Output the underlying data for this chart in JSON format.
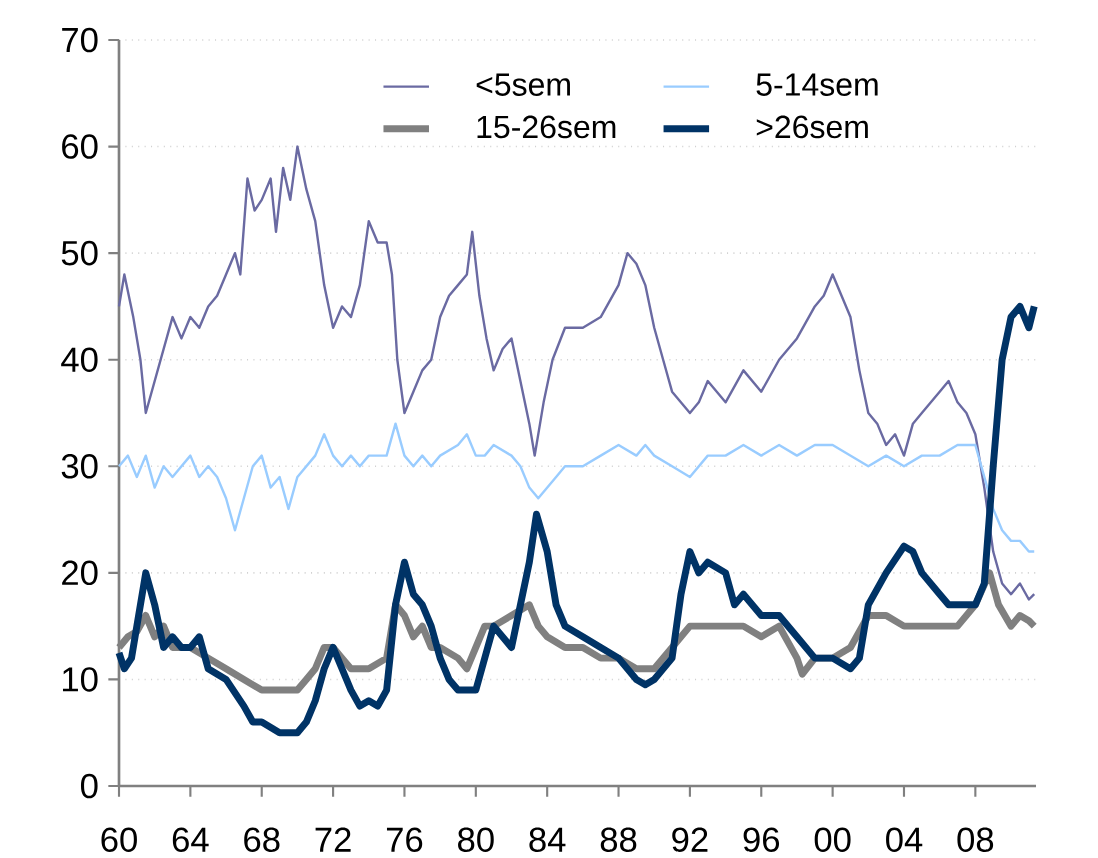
{
  "chart_data": {
    "type": "line",
    "xlim": [
      1960,
      2011.4
    ],
    "ylim": [
      0,
      70
    ],
    "xticks": [
      {
        "value": 1960,
        "label": "60"
      },
      {
        "value": 1964,
        "label": "64"
      },
      {
        "value": 1968,
        "label": "68"
      },
      {
        "value": 1972,
        "label": "72"
      },
      {
        "value": 1976,
        "label": "76"
      },
      {
        "value": 1980,
        "label": "80"
      },
      {
        "value": 1984,
        "label": "84"
      },
      {
        "value": 1988,
        "label": "88"
      },
      {
        "value": 1992,
        "label": "92"
      },
      {
        "value": 1996,
        "label": "96"
      },
      {
        "value": 2000,
        "label": "00"
      },
      {
        "value": 2004,
        "label": "04"
      },
      {
        "value": 2008,
        "label": "08"
      }
    ],
    "yticks": [
      0,
      10,
      20,
      30,
      40,
      50,
      60,
      70
    ],
    "grid": "y",
    "legend": "top",
    "marker": "none",
    "line_style": "solid",
    "series": [
      {
        "name": "<5sem",
        "color": "#6a6aa2",
        "x": [
          1960,
          1960.3,
          1960.8,
          1961.2,
          1961.5,
          1962,
          1962.5,
          1963,
          1963.5,
          1964,
          1964.5,
          1965,
          1965.5,
          1966,
          1966.5,
          1966.8,
          1967.2,
          1967.6,
          1968,
          1968.5,
          1968.8,
          1969.2,
          1969.6,
          1970,
          1970.5,
          1971,
          1971.5,
          1972,
          1972.5,
          1973,
          1973.5,
          1974,
          1974.5,
          1975,
          1975.3,
          1975.6,
          1976,
          1976.5,
          1977,
          1977.5,
          1978,
          1978.5,
          1979,
          1979.5,
          1979.8,
          1980.2,
          1980.6,
          1981,
          1981.5,
          1982,
          1982.5,
          1983,
          1983.3,
          1983.8,
          1984.3,
          1985,
          1986,
          1987,
          1988,
          1988.5,
          1989,
          1989.5,
          1990,
          1990.5,
          1991,
          1992,
          1992.5,
          1993,
          1994,
          1995,
          1996,
          1997,
          1998,
          1999,
          1999.5,
          2000,
          2000.5,
          2001,
          2001.5,
          2002,
          2002.5,
          2003,
          2003.5,
          2004,
          2004.5,
          2005,
          2006,
          2006.5,
          2007,
          2007.5,
          2008,
          2008.5,
          2009,
          2009.5,
          2010,
          2010.5,
          2011,
          2011.3
        ],
        "values": [
          45,
          48,
          44,
          40,
          35,
          38,
          41,
          44,
          42,
          44,
          43,
          45,
          46,
          48,
          50,
          48,
          57,
          54,
          55,
          57,
          52,
          58,
          55,
          60,
          56,
          53,
          47,
          43,
          45,
          44,
          47,
          53,
          51,
          51,
          48,
          40,
          35,
          37,
          39,
          40,
          44,
          46,
          47,
          48,
          52,
          46,
          42,
          39,
          41,
          42,
          38,
          34,
          31,
          36,
          40,
          43,
          43,
          44,
          47,
          50,
          49,
          47,
          43,
          40,
          37,
          35,
          36,
          38,
          36,
          39,
          37,
          40,
          42,
          45,
          46,
          48,
          46,
          44,
          39,
          35,
          34,
          32,
          33,
          31,
          34,
          35,
          37,
          38,
          36,
          35,
          33,
          28,
          22,
          19,
          18,
          19,
          17.5,
          18
        ]
      },
      {
        "name": "5-14sem",
        "color": "#99ccff",
        "x": [
          1960,
          1960.5,
          1961,
          1961.5,
          1962,
          1962.5,
          1963,
          1964,
          1964.5,
          1965,
          1965.5,
          1966,
          1966.5,
          1967,
          1967.5,
          1968,
          1968.5,
          1969,
          1969.5,
          1970,
          1971,
          1971.5,
          1972,
          1972.5,
          1973,
          1973.5,
          1974,
          1975,
          1975.5,
          1976,
          1976.5,
          1977,
          1977.5,
          1978,
          1979,
          1979.5,
          1980,
          1980.5,
          1981,
          1982,
          1982.5,
          1983,
          1983.5,
          1984,
          1984.5,
          1985,
          1986,
          1987,
          1988,
          1989,
          1989.5,
          1990,
          1991,
          1992,
          1993,
          1994,
          1995,
          1996,
          1997,
          1998,
          1999,
          2000,
          2001,
          2002,
          2003,
          2004,
          2005,
          2006,
          2007,
          2008,
          2008.5,
          2009,
          2009.5,
          2010,
          2010.5,
          2011,
          2011.3
        ],
        "values": [
          30,
          31,
          29,
          31,
          28,
          30,
          29,
          31,
          29,
          30,
          29,
          27,
          24,
          27,
          30,
          31,
          28,
          29,
          26,
          29,
          31,
          33,
          31,
          30,
          31,
          30,
          31,
          31,
          34,
          31,
          30,
          31,
          30,
          31,
          32,
          33,
          31,
          31,
          32,
          31,
          30,
          28,
          27,
          28,
          29,
          30,
          30,
          31,
          32,
          31,
          32,
          31,
          30,
          29,
          31,
          31,
          32,
          31,
          32,
          31,
          32,
          32,
          31,
          30,
          31,
          30,
          31,
          31,
          32,
          32,
          29,
          26,
          24,
          23,
          23,
          22,
          22
        ]
      },
      {
        "name": "15-26sem",
        "color": "#808080",
        "x": [
          1960,
          1960.5,
          1961,
          1961.5,
          1962,
          1962.5,
          1963,
          1964,
          1965,
          1966,
          1967,
          1968,
          1969,
          1970,
          1970.5,
          1971,
          1971.5,
          1972,
          1972.5,
          1973,
          1974,
          1975,
          1975.5,
          1976,
          1976.5,
          1977,
          1977.5,
          1978,
          1979,
          1979.5,
          1980,
          1980.5,
          1981,
          1982,
          1983,
          1983.5,
          1984,
          1985,
          1986,
          1987,
          1988,
          1989,
          1990,
          1991,
          1992,
          1993,
          1994,
          1995,
          1996,
          1997,
          1998,
          1998.3,
          1999,
          2000,
          2001,
          2002,
          2003,
          2004,
          2005,
          2006,
          2007,
          2008,
          2008.8,
          2009.3,
          2010,
          2010.5,
          2011,
          2011.3
        ],
        "values": [
          13,
          14,
          14.5,
          16,
          14,
          15,
          13,
          13,
          12,
          11,
          10,
          9,
          9,
          9,
          10,
          11,
          13,
          13,
          12,
          11,
          11,
          12,
          17,
          16,
          14,
          15,
          13,
          13,
          12,
          11,
          13,
          15,
          15,
          16,
          17,
          15,
          14,
          13,
          13,
          12,
          12,
          11,
          11,
          13,
          15,
          15,
          15,
          15,
          14,
          15,
          12,
          10.5,
          12,
          12,
          13,
          16,
          16,
          15,
          15,
          15,
          15,
          17,
          20,
          17,
          15,
          16,
          15.5,
          15
        ]
      },
      {
        "name": ">26sem",
        "color": "#003366",
        "x": [
          1960,
          1960.3,
          1960.7,
          1961,
          1961.5,
          1962,
          1962.5,
          1963,
          1963.5,
          1964,
          1964.5,
          1965,
          1966,
          1967,
          1967.5,
          1968,
          1969,
          1970,
          1970.5,
          1971,
          1971.5,
          1972,
          1972.5,
          1973,
          1973.5,
          1974,
          1974.5,
          1975,
          1975.5,
          1976,
          1976.5,
          1977,
          1977.5,
          1978,
          1978.5,
          1979,
          1979.5,
          1980,
          1980.5,
          1981,
          1981.5,
          1982,
          1982.5,
          1983,
          1983.4,
          1984,
          1984.5,
          1985,
          1986,
          1987,
          1988,
          1989,
          1989.5,
          1990,
          1991,
          1991.5,
          1992,
          1992.5,
          1993,
          1994,
          1994.5,
          1995,
          1996,
          1997,
          1998,
          1999,
          2000,
          2001,
          2001.5,
          2002,
          2003,
          2004,
          2004.5,
          2005,
          2006,
          2006.5,
          2007,
          2008,
          2008.5,
          2009,
          2009.5,
          2010,
          2010.5,
          2011,
          2011.3
        ],
        "values": [
          12.5,
          11,
          12,
          15,
          20,
          17,
          13,
          14,
          13,
          13,
          14,
          11,
          10,
          7.5,
          6,
          6,
          5,
          5,
          6,
          8,
          11,
          13,
          11,
          9,
          7.5,
          8,
          7.5,
          9,
          17,
          21,
          18,
          17,
          15,
          12,
          10,
          9,
          9,
          9,
          12,
          15,
          14,
          13,
          17,
          21,
          25.5,
          22,
          17,
          15,
          14,
          13,
          12,
          10,
          9.5,
          10,
          12,
          18,
          22,
          20,
          21,
          20,
          17,
          18,
          16,
          16,
          14,
          12,
          12,
          11,
          12,
          17,
          20,
          22.5,
          22,
          20,
          18,
          17,
          17,
          17,
          19,
          30,
          40,
          44,
          45,
          43,
          45
        ]
      }
    ]
  }
}
